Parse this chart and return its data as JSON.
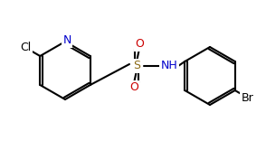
{
  "bg_color": "#ffffff",
  "line_color": "#000000",
  "line_width": 1.5,
  "font_size": 9,
  "N_color": "#0000cc",
  "O_color": "#cc0000",
  "S_color": "#8b6914",
  "atoms": {
    "Cl": "#000000",
    "Br": "#000000",
    "N": "#0000cc",
    "O": "#cc0000",
    "S": "#8b6914"
  }
}
